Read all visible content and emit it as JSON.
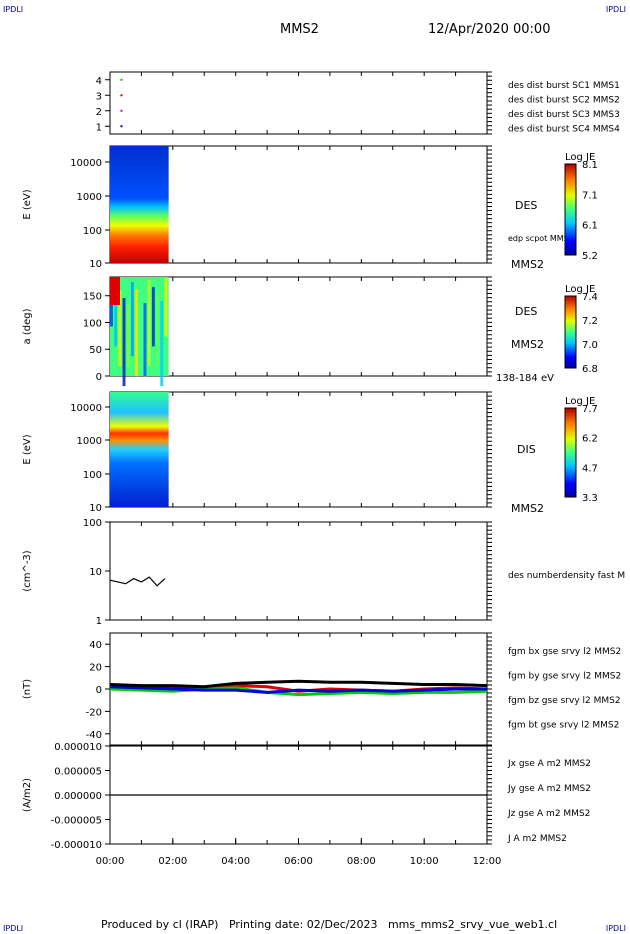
{
  "header": {
    "corner": "IPDLI",
    "spacecraft": "MMS2",
    "datetime": "12/Apr/2020 00:00"
  },
  "footer": {
    "text": "Produced by cl (IRAP)   Printing date: 02/Dec/2023   mms_mms2_srvy_vue_web1.cl"
  },
  "colors": {
    "mms1": "#0000cc",
    "mms2": "#cc00cc",
    "mms3": "#cc0000",
    "mms4": "#00bb00"
  },
  "chart_data": [
    {
      "type": "scatter",
      "ylim": [
        0.5,
        4.5
      ],
      "yticks": [
        "1",
        "2",
        "3",
        "4"
      ],
      "legend": [
        "des dist burst SC1 MMS1",
        "des dist burst SC2 MMS2",
        "des dist burst SC3 MMS3",
        "des dist burst SC4 MMS4"
      ],
      "series": [
        {
          "name": "des dist burst SC1 MMS1",
          "x": [
            "00:20"
          ],
          "y": [
            1
          ]
        },
        {
          "name": "des dist burst SC2 MMS2",
          "x": [
            "00:20"
          ],
          "y": [
            2
          ]
        },
        {
          "name": "des dist burst SC3 MMS3",
          "x": [
            "00:20"
          ],
          "y": [
            3
          ]
        },
        {
          "name": "des dist burst SC4 MMS4",
          "x": [
            "00:20"
          ],
          "y": [
            4
          ]
        }
      ]
    },
    {
      "type": "heatmap",
      "ylabel": "E (eV)",
      "yticks": [
        "10",
        "100",
        "1000",
        "10000"
      ],
      "label": "DES",
      "note": "edp scpot MMS2",
      "sc": "MMS2",
      "colorbar": {
        "title": "Log JE",
        "ticks": [
          "8.1",
          "7.1",
          "6.1",
          "5.2"
        ]
      }
    },
    {
      "type": "heatmap",
      "ylabel": "a (deg)",
      "yticks": [
        "0",
        "50",
        "100",
        "150"
      ],
      "label": "DES",
      "sc": "MMS2",
      "range": "138-184 eV",
      "colorbar": {
        "title": "Log JE",
        "ticks": [
          "7.4",
          "7.2",
          "7.0",
          "6.8"
        ]
      }
    },
    {
      "type": "heatmap",
      "ylabel": "E (eV)",
      "yticks": [
        "10",
        "100",
        "1000",
        "10000"
      ],
      "label": "DIS",
      "sc": "MMS2",
      "colorbar": {
        "title": "Log JE",
        "ticks": [
          "7.7",
          "6.2",
          "4.7",
          "3.3"
        ]
      }
    },
    {
      "type": "line",
      "ylabel": "(cm^-3)",
      "yticks": [
        "1",
        "10",
        "100"
      ],
      "legend": [
        "des numberdensity fast M"
      ],
      "series": [
        {
          "name": "des numberdensity fast M",
          "x": [
            "00:00",
            "00:15",
            "00:30",
            "00:45",
            "01:00",
            "01:15",
            "01:30",
            "01:45"
          ],
          "y": [
            6.5,
            6.0,
            5.5,
            7.0,
            6.0,
            7.5,
            5.0,
            7.0
          ]
        }
      ]
    },
    {
      "type": "line",
      "ylabel": "(nT)",
      "yticks": [
        "-40",
        "-20",
        "0",
        "20",
        "40"
      ],
      "legend": [
        "fgm bx gse srvy l2 MMS2",
        "fgm by gse srvy l2 MMS2",
        "fgm bz gse srvy l2 MMS2",
        "fgm bt gse srvy l2 MMS2"
      ],
      "series": [
        {
          "name": "fgm bx gse srvy l2 MMS2",
          "x": [
            "00:00",
            "01:00",
            "02:00",
            "03:00",
            "04:00",
            "05:00",
            "06:00",
            "07:00",
            "08:00",
            "09:00",
            "10:00",
            "11:00",
            "12:00"
          ],
          "y": [
            1,
            0,
            2,
            -1,
            3,
            2,
            -2,
            0,
            -1,
            -2,
            0,
            1,
            0
          ]
        },
        {
          "name": "fgm by gse srvy l2 MMS2",
          "x": [
            "00:00",
            "01:00",
            "02:00",
            "03:00",
            "04:00",
            "05:00",
            "06:00",
            "07:00",
            "08:00",
            "09:00",
            "10:00",
            "11:00",
            "12:00"
          ],
          "y": [
            0,
            -1,
            -2,
            0,
            1,
            -3,
            -5,
            -4,
            -3,
            -4,
            -3,
            -3,
            -2
          ]
        },
        {
          "name": "fgm bz gse srvy l2 MMS2",
          "x": [
            "00:00",
            "01:00",
            "02:00",
            "03:00",
            "04:00",
            "05:00",
            "06:00",
            "07:00",
            "08:00",
            "09:00",
            "10:00",
            "11:00",
            "12:00"
          ],
          "y": [
            2,
            1,
            0,
            -1,
            -1,
            -3,
            -1,
            -2,
            -1,
            -2,
            -1,
            0,
            0
          ]
        },
        {
          "name": "fgm bt gse srvy l2 MMS2",
          "x": [
            "00:00",
            "01:00",
            "02:00",
            "03:00",
            "04:00",
            "05:00",
            "06:00",
            "07:00",
            "08:00",
            "09:00",
            "10:00",
            "11:00",
            "12:00"
          ],
          "y": [
            4,
            3,
            3,
            2,
            5,
            6,
            7,
            6,
            6,
            5,
            4,
            4,
            3
          ]
        }
      ]
    },
    {
      "type": "line",
      "ylabel": "(A/m2)",
      "yticks": [
        "-0.000010",
        "-0.000005",
        "0.000000",
        "0.000005",
        "0.000010"
      ],
      "legend": [
        "Jx gse A m2 MMS2",
        "Jy gse A m2 MMS2",
        "Jz gse A m2 MMS2",
        "J A m2 MMS2"
      ],
      "series": [
        {
          "name": "J A m2 MMS2",
          "x": [
            "00:00",
            "12:00"
          ],
          "y": [
            0,
            0
          ]
        }
      ]
    }
  ],
  "xaxis": {
    "ticks": [
      "00:00",
      "02:00",
      "04:00",
      "06:00",
      "08:00",
      "10:00",
      "12:00"
    ]
  }
}
